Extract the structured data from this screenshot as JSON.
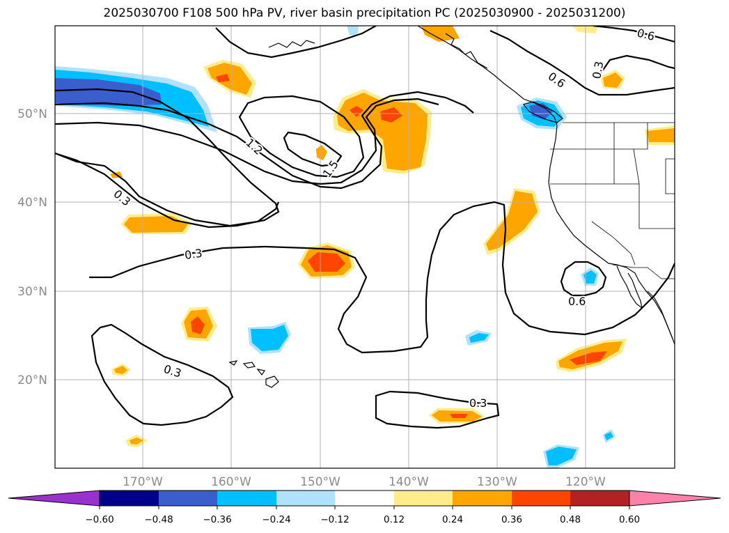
{
  "title": "2025030700 F108 500 hPa PV, river basin precipitation PC (2025030900 - 2025031200)",
  "lat_labels": [
    "50°N",
    "40°N",
    "30°N",
    "20°N"
  ],
  "lon_labels": [
    "170°W",
    "160°W",
    "150°W",
    "140°W",
    "130°W",
    "120°W"
  ],
  "contour_labels": [
    "1.2",
    "1.5",
    "0.3",
    "0.3",
    "0.3",
    "0.3",
    "0.6",
    "0.6",
    "0.6",
    "0.3"
  ],
  "colorbar": {
    "ticks": [
      "−0.60",
      "−0.48",
      "−0.36",
      "−0.24",
      "−0.12",
      "0.12",
      "0.24",
      "0.36",
      "0.48",
      "0.60"
    ],
    "colors": [
      "#9932cc",
      "#00008b",
      "#3a5fcd",
      "#00bfff",
      "#b0e2ff",
      "#ffffff",
      "#ffec8b",
      "#ffa500",
      "#ff4500",
      "#b22222",
      "#ff82ab"
    ]
  },
  "palette": {
    "light_yellow": "#ffec8b",
    "orange": "#ffa500",
    "red_orange": "#ff4500",
    "light_blue": "#b0e2ff",
    "deep_sky_blue": "#00bfff",
    "royal_blue": "#3a5fcd"
  }
}
